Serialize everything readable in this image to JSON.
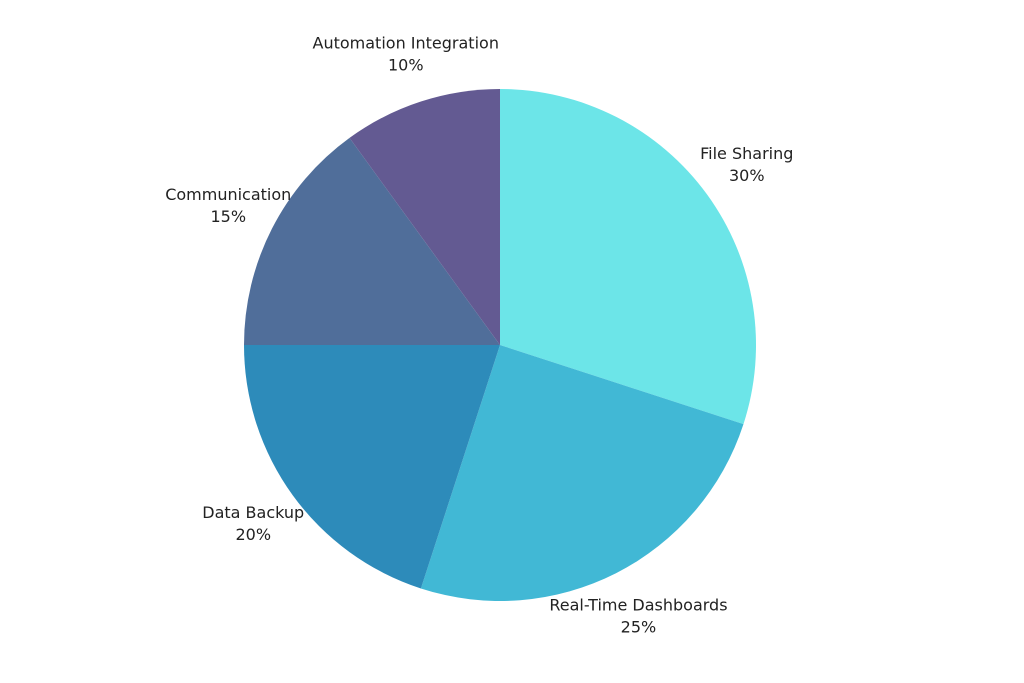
{
  "chart_data": {
    "type": "pie",
    "categories": [
      "File Sharing",
      "Real-Time Dashboards",
      "Data Backup",
      "Communication",
      "Automation Integration"
    ],
    "values": [
      30,
      25,
      20,
      15,
      10
    ],
    "value_labels": [
      "30%",
      "25%",
      "20%",
      "15%",
      "10%"
    ],
    "colors": [
      "#6ce5e8",
      "#41b8d5",
      "#2d8bba",
      "#506e9a",
      "#635a92"
    ]
  }
}
